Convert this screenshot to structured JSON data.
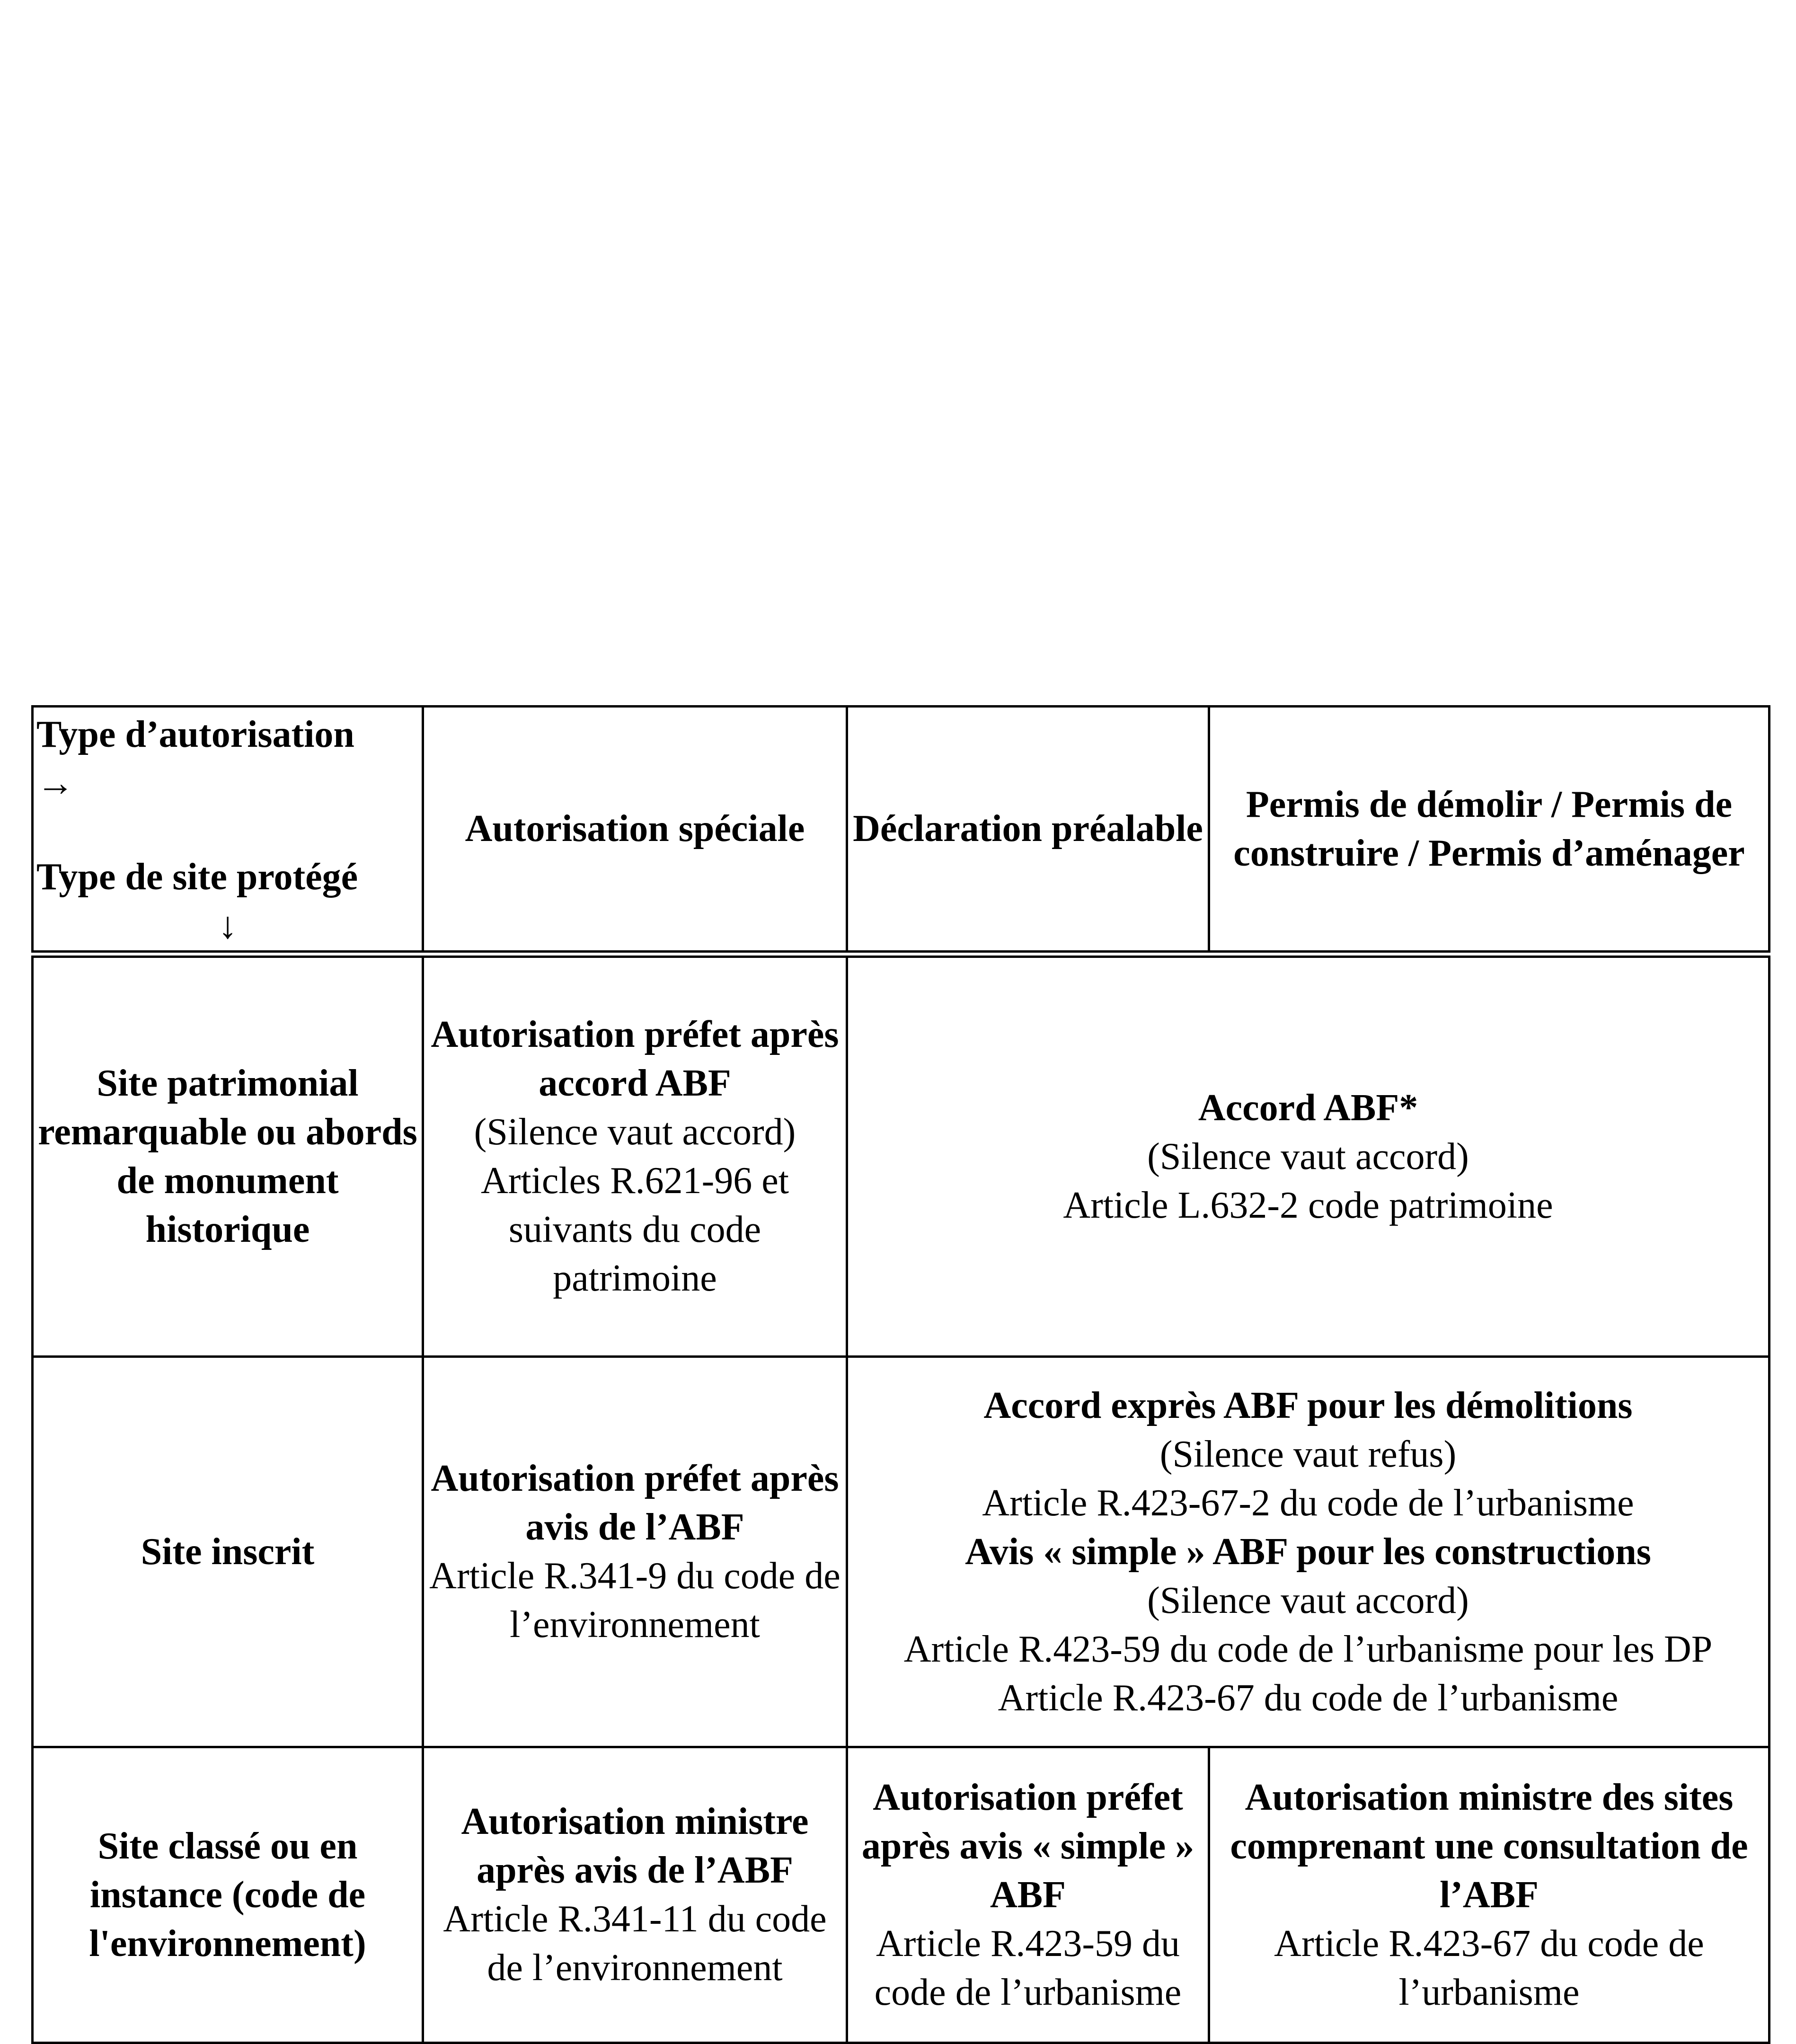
{
  "header": {
    "corner_top": "Type d’autorisation",
    "corner_right_arrow": "→",
    "corner_bottom": "Type de site protégé",
    "corner_down_arrow": "↓",
    "columns": [
      "Autorisation spéciale",
      "Déclaration préalable",
      "Permis de démolir / Permis de construire / Permis d’aménager"
    ]
  },
  "rows": [
    {
      "site": "Site patrimonial remarquable ou abords de monument historique",
      "special": {
        "bold": "Autorisation préfet après accord ABF",
        "lines": [
          "(Silence vaut accord)",
          "Articles R.621-96 et suivants du code patrimoine"
        ]
      },
      "merged": {
        "bold": "Accord ABF*",
        "lines": [
          "(Silence vaut accord)",
          "Article L.632-2 code patrimoine"
        ]
      }
    },
    {
      "site": "Site inscrit",
      "special": {
        "bold": "Autorisation préfet après avis de l’ABF",
        "lines": [
          "Article R.341-9 du code de l’environnement"
        ]
      },
      "merged": {
        "bold1": "Accord exprès ABF pour les démolitions",
        "line1": "(Silence vaut refus)",
        "line2": "Article R.423-67-2 du code de l’urbanisme",
        "bold2": "Avis « simple » ABF pour les constructions",
        "line3": "(Silence vaut accord)",
        "line4": "Article R.423-59 du code de l’urbanisme pour les DP",
        "line5": "Article R.423-67 du code de l’urbanisme"
      }
    },
    {
      "site": "Site classé ou en instance (code de l'environnement)",
      "special": {
        "bold": "Autorisation ministre après avis de l’ABF",
        "lines": [
          "Article R.341-11 du code de l’environnement"
        ]
      },
      "dp": {
        "bold": "Autorisation préfet après avis « simple » ABF",
        "lines": [
          "Article R.423-59 du code de l’urbanisme"
        ]
      },
      "permis": {
        "bold": "Autorisation ministre des sites comprenant une consultation de l’ABF",
        "lines": [
          "Article R.423-67 du code de l’urbanisme"
        ]
      }
    }
  ]
}
